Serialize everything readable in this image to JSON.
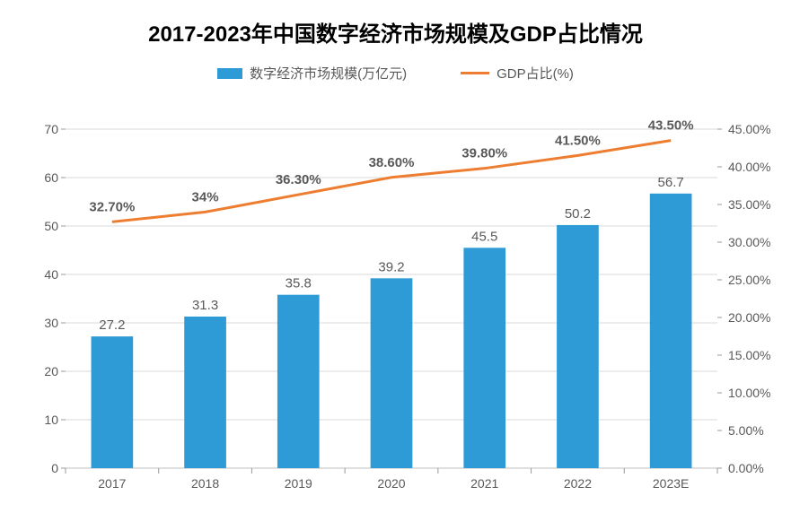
{
  "title": "2017-2023年中国数字经济市场规模及GDP占比情况",
  "legend": {
    "bar_label": "数字经济市场规模(万亿元)",
    "line_label": "GDP占比(%)"
  },
  "chart": {
    "type": "bar+line",
    "categories": [
      "2017",
      "2018",
      "2019",
      "2020",
      "2021",
      "2022",
      "2023E"
    ],
    "bar_series": {
      "name": "数字经济市场规模(万亿元)",
      "values": [
        27.2,
        31.3,
        35.8,
        39.2,
        45.5,
        50.2,
        56.7
      ],
      "value_labels": [
        "27.2",
        "31.3",
        "35.8",
        "39.2",
        "45.5",
        "50.2",
        "56.7"
      ],
      "color": "#2e9bd6"
    },
    "line_series": {
      "name": "GDP占比(%)",
      "values": [
        32.7,
        34.0,
        36.3,
        38.6,
        39.8,
        41.5,
        43.5
      ],
      "value_labels": [
        "32.70%",
        "34%",
        "36.30%",
        "38.60%",
        "39.80%",
        "41.50%",
        "43.50%"
      ],
      "color": "#ed7d31"
    },
    "y_left": {
      "min": 0,
      "max": 70,
      "step": 10,
      "tick_labels": [
        "0",
        "10",
        "20",
        "30",
        "40",
        "50",
        "60",
        "70"
      ]
    },
    "y_right": {
      "min": 0,
      "max": 45,
      "step": 5,
      "tick_labels": [
        "0.00%",
        "5.00%",
        "10.00%",
        "15.00%",
        "20.00%",
        "25.00%",
        "30.00%",
        "35.00%",
        "40.00%",
        "45.00%"
      ]
    },
    "colors": {
      "background": "#ffffff",
      "grid": "#d9d9d9",
      "axis": "#bfbfbf",
      "tick_mark": "#999999",
      "text": "#595959"
    },
    "bar_width_ratio": 0.45,
    "line_width": 3,
    "title_fontsize": 24,
    "label_fontsize": 15,
    "axis_fontsize": 14
  }
}
